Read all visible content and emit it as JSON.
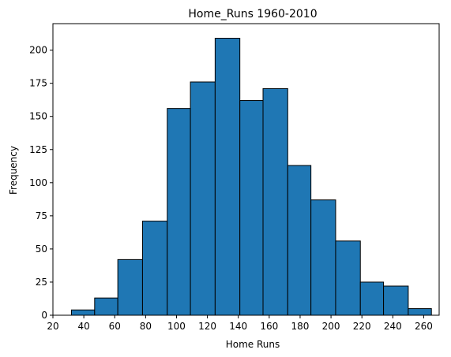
{
  "chart_data": {
    "type": "bar",
    "title": "Home_Runs 1960-2010",
    "xlabel": "Home Runs",
    "ylabel": "Frequency",
    "xlim": [
      20,
      270
    ],
    "ylim": [
      0,
      220
    ],
    "xticks": [
      20,
      40,
      60,
      80,
      100,
      120,
      140,
      160,
      180,
      200,
      220,
      240,
      260
    ],
    "yticks": [
      0,
      25,
      50,
      75,
      100,
      125,
      150,
      175,
      200
    ],
    "bins": [
      {
        "x0": 32,
        "x1": 47,
        "value": 4
      },
      {
        "x0": 47,
        "x1": 62,
        "value": 13
      },
      {
        "x0": 62,
        "x1": 78,
        "value": 42
      },
      {
        "x0": 78,
        "x1": 94,
        "value": 71
      },
      {
        "x0": 94,
        "x1": 109,
        "value": 156
      },
      {
        "x0": 109,
        "x1": 125,
        "value": 176
      },
      {
        "x0": 125,
        "x1": 141,
        "value": 209
      },
      {
        "x0": 141,
        "x1": 156,
        "value": 162
      },
      {
        "x0": 156,
        "x1": 172,
        "value": 171
      },
      {
        "x0": 172,
        "x1": 187,
        "value": 113
      },
      {
        "x0": 187,
        "x1": 203,
        "value": 87
      },
      {
        "x0": 203,
        "x1": 219,
        "value": 56
      },
      {
        "x0": 219,
        "x1": 234,
        "value": 25
      },
      {
        "x0": 234,
        "x1": 250,
        "value": 22
      },
      {
        "x0": 250,
        "x1": 265,
        "value": 5
      }
    ],
    "bar_color": "#1f77b4",
    "edge_color": "#000000",
    "grid": false,
    "legend": "none"
  }
}
